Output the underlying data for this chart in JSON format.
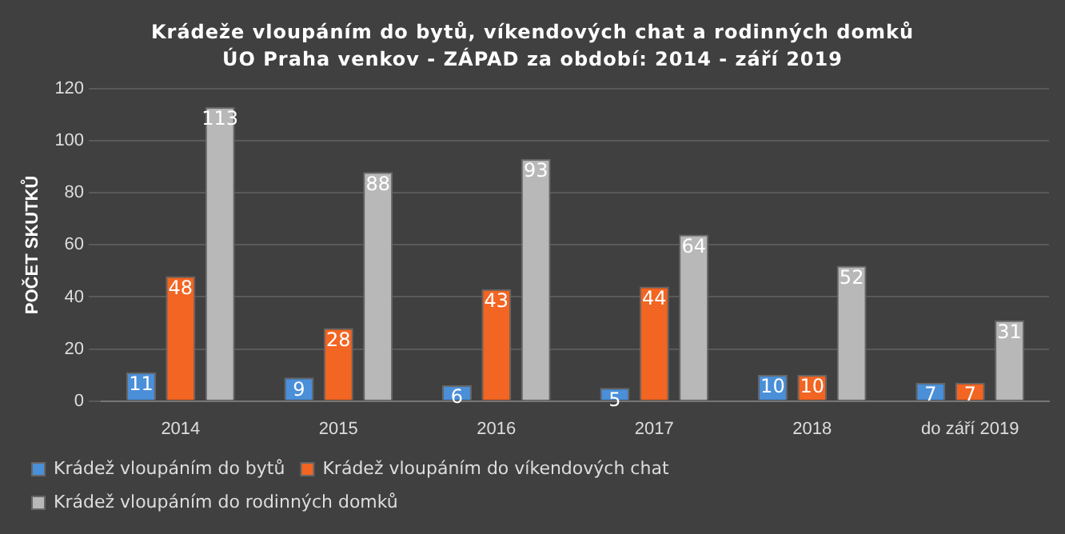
{
  "chart_data": {
    "type": "bar",
    "title": "Krádeže vloupáním do bytů, víkendových chat a rodinných domků",
    "subtitle": "ÚO Praha venkov - ZÁPAD za období: 2014 - září 2019",
    "ylabel": "POČET SKUTKŮ",
    "categories": [
      "2014",
      "2015",
      "2016",
      "2017",
      "2018",
      "do září 2019"
    ],
    "series": [
      {
        "name": "Krádež vloupáním do bytů",
        "color": "#4a8fd8",
        "values": [
          11,
          9,
          6,
          5,
          10,
          7
        ]
      },
      {
        "name": "Krádež vloupáním do víkendových chat",
        "color": "#f26522",
        "values": [
          48,
          28,
          43,
          44,
          10,
          7
        ]
      },
      {
        "name": "Krádež vloupáním do rodinných domků",
        "color": "#b8b8b8",
        "values": [
          113,
          88,
          93,
          64,
          52,
          31
        ]
      }
    ],
    "ylim": [
      0,
      120
    ],
    "yticks": [
      0,
      20,
      40,
      60,
      80,
      100,
      120
    ],
    "grid": "y",
    "legend": "bottom",
    "data_labels": true
  }
}
